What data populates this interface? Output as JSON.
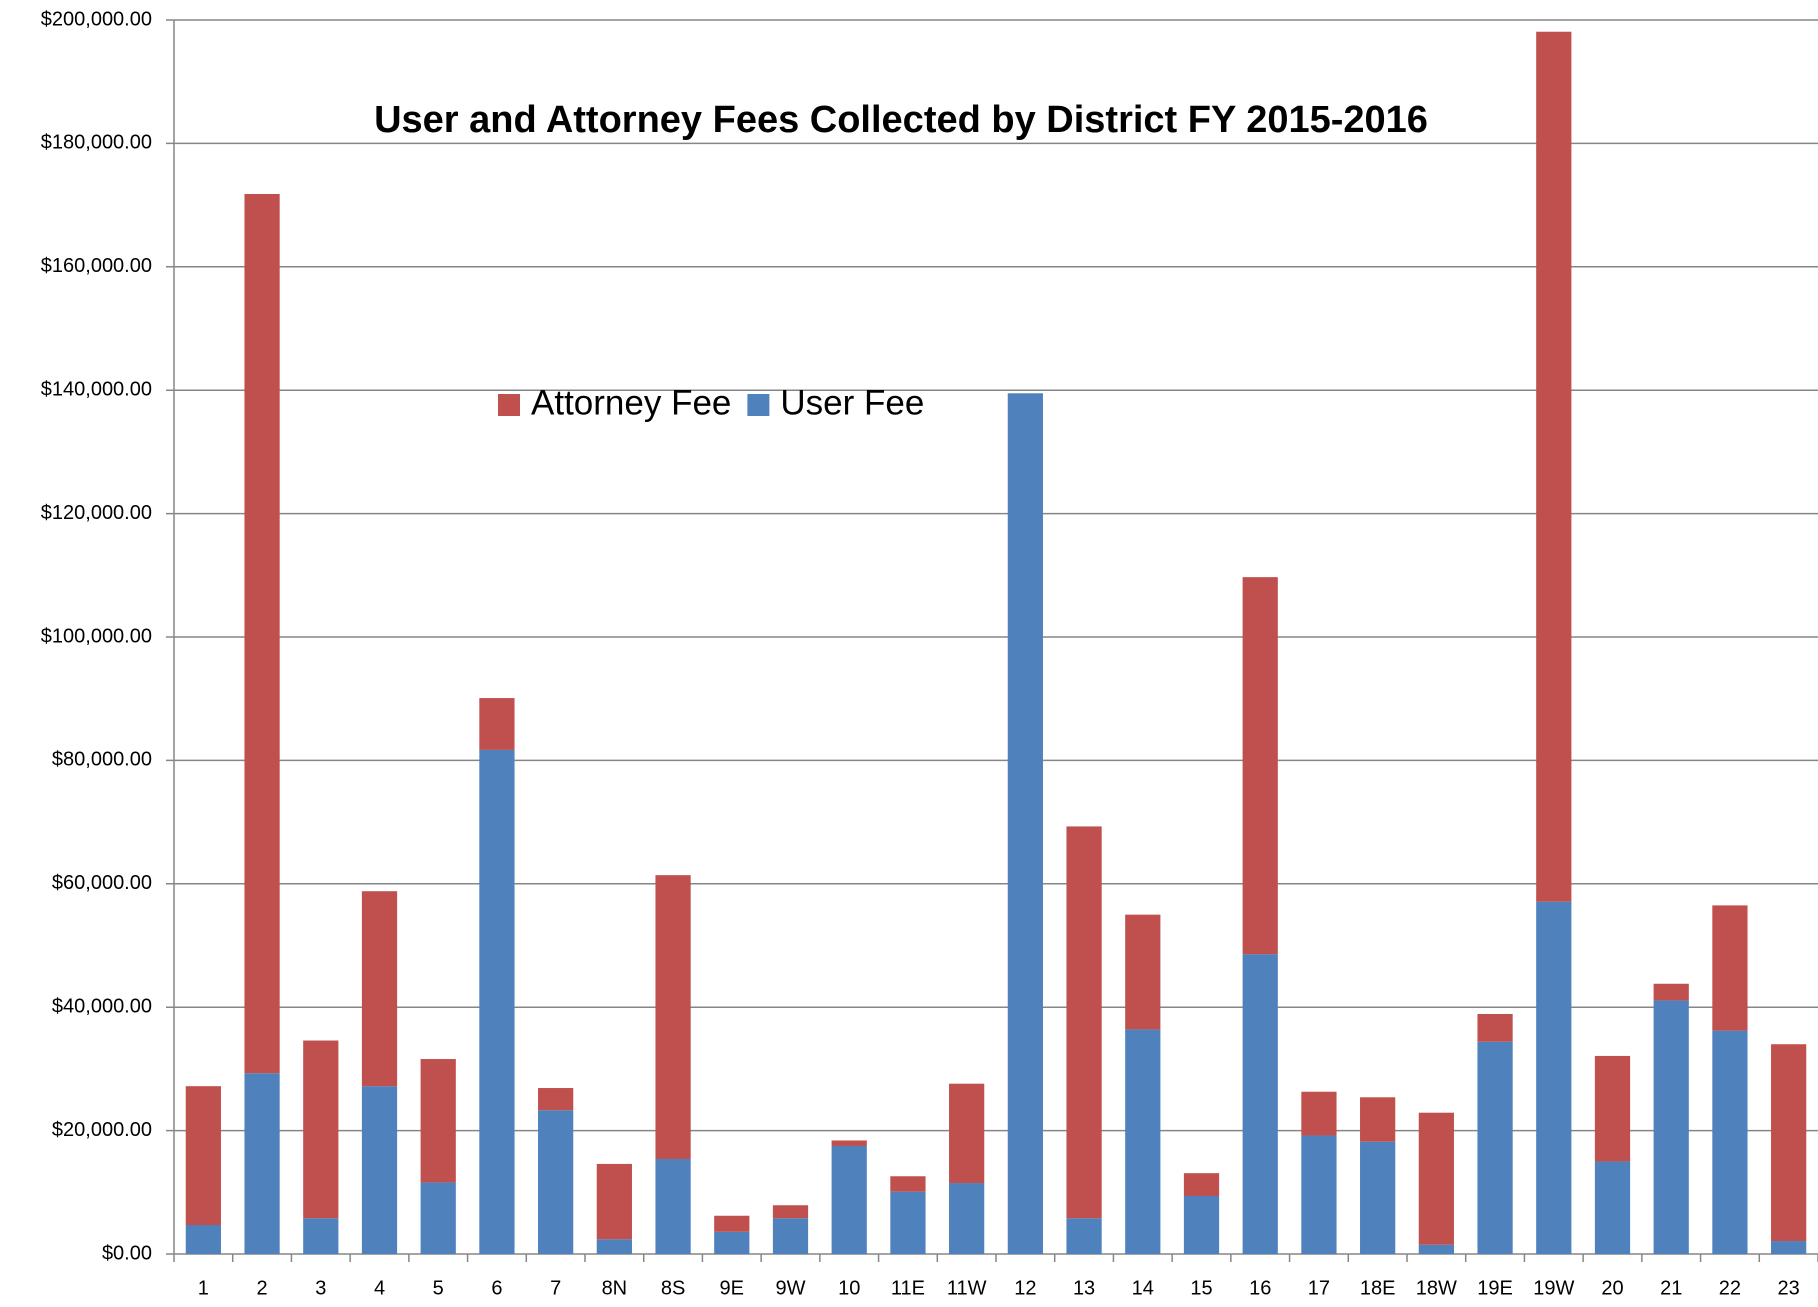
{
  "chart_data": {
    "type": "stacked_bar",
    "title": "User and Attorney Fees Collected by District FY 2015-2016",
    "categories": [
      "1",
      "2",
      "3",
      "4",
      "5",
      "6",
      "7",
      "8N",
      "8S",
      "9E",
      "9W",
      "10",
      "11E",
      "11W",
      "12",
      "13",
      "14",
      "15",
      "16",
      "17",
      "18E",
      "18W",
      "19E",
      "19W",
      "20",
      "21",
      "22",
      "23"
    ],
    "series": [
      {
        "name": "Attorney Fee",
        "color": "#c0504d",
        "values": [
          22500,
          142500,
          28800,
          31600,
          20000,
          8400,
          3600,
          12200,
          46000,
          2600,
          2100,
          900,
          2500,
          16100,
          0,
          63500,
          18600,
          3700,
          61100,
          7100,
          7200,
          21400,
          4500,
          141000,
          17100,
          2700,
          20300,
          31900
        ]
      },
      {
        "name": "User Fee",
        "color": "#4f81bd",
        "values": [
          4700,
          29300,
          5800,
          27200,
          11600,
          81700,
          23300,
          2400,
          15400,
          3600,
          5800,
          17500,
          10100,
          11500,
          139500,
          5800,
          36400,
          9400,
          48600,
          19200,
          18200,
          1500,
          34400,
          57100,
          15000,
          41100,
          36200,
          2100
        ]
      }
    ],
    "ylim": [
      0,
      200000
    ],
    "yticks": [
      {
        "value": 0,
        "label": "$0.00"
      },
      {
        "value": 20000,
        "label": "$20,000.00"
      },
      {
        "value": 40000,
        "label": "$40,000.00"
      },
      {
        "value": 60000,
        "label": "$60,000.00"
      },
      {
        "value": 80000,
        "label": "$80,000.00"
      },
      {
        "value": 100000,
        "label": "$100,000.00"
      },
      {
        "value": 120000,
        "label": "$120,000.00"
      },
      {
        "value": 140000,
        "label": "$140,000.00"
      },
      {
        "value": 160000,
        "label": "$160,000.00"
      },
      {
        "value": 180000,
        "label": "$180,000.00"
      },
      {
        "value": 200000,
        "label": "$200,000.00"
      }
    ],
    "grid": true
  }
}
